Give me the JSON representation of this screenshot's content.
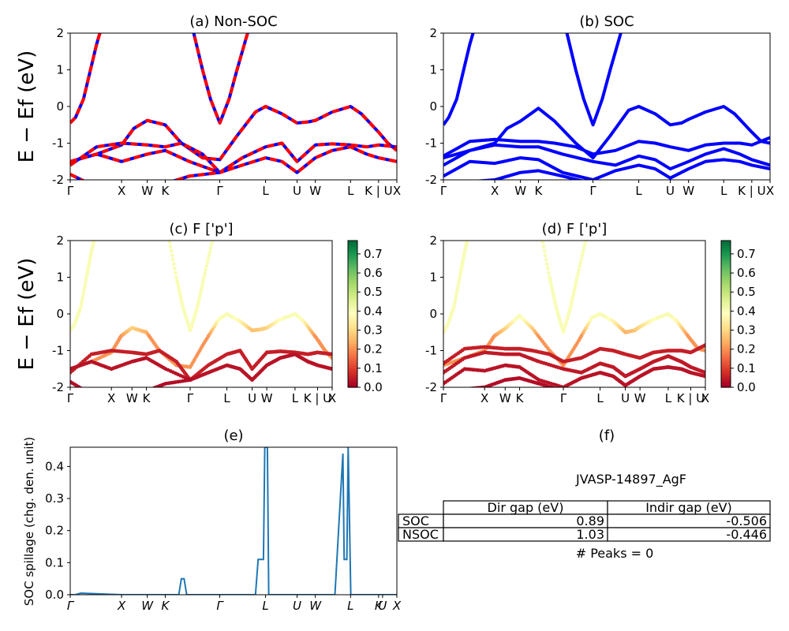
{
  "figure_id": "JVASP-14897_AgF",
  "colors": {
    "band": "#0000ff",
    "overlay": "#ff0000",
    "spillage": "#1f77b4"
  },
  "colormap": "RdYlGn",
  "chart_data": [
    {
      "id": "a",
      "type": "line",
      "title": "(a) Non-SOC",
      "ylabel": "E − Ef (eV)",
      "ylim": [
        -2,
        2
      ],
      "yticks": [
        -2,
        -1,
        0,
        1,
        2
      ],
      "kpath_labels": [
        "Γ",
        "X",
        "W",
        "K",
        "Γ",
        "L",
        "U",
        "W",
        "L",
        "K | U",
        "X"
      ],
      "kpath_pos": [
        0,
        0.194,
        0.291,
        0.359,
        0.565,
        0.738,
        0.857,
        0.926,
        1.059,
        1.165,
        1.234
      ],
      "style": "blue-red-dashed",
      "series": [
        {
          "x": [
            0,
            0.02,
            0.05,
            0.08,
            0.1,
            0.12
          ],
          "y": [
            -0.45,
            -0.3,
            0.2,
            1.1,
            1.7,
            2.2
          ]
        },
        {
          "x": [
            0.46,
            0.5,
            0.53,
            0.565,
            0.6,
            0.63,
            0.67,
            0.7
          ],
          "y": [
            2.2,
            1.0,
            0.2,
            -0.45,
            0.2,
            1.0,
            2.0,
            2.3
          ]
        },
        {
          "x": [
            0,
            0.1,
            0.194,
            0.24,
            0.291,
            0.33,
            0.359,
            0.42,
            0.5,
            0.565,
            0.63,
            0.7,
            0.738,
            0.8,
            0.857,
            0.9,
            0.926,
            0.99,
            1.059,
            1.1,
            1.165,
            1.2,
            1.234
          ],
          "y": [
            -1.5,
            -1.3,
            -1.05,
            -0.6,
            -0.38,
            -0.45,
            -0.5,
            -1.0,
            -1.4,
            -1.45,
            -0.8,
            -0.15,
            0.0,
            -0.2,
            -0.45,
            -0.42,
            -0.38,
            -0.15,
            0.0,
            -0.2,
            -0.7,
            -1.0,
            -1.2
          ]
        },
        {
          "x": [
            0,
            0.1,
            0.194,
            0.291,
            0.359,
            0.42,
            0.5,
            0.565,
            0.65,
            0.738,
            0.8,
            0.857,
            0.926,
            0.99,
            1.059,
            1.12,
            1.165,
            1.234
          ],
          "y": [
            -1.6,
            -1.1,
            -1.0,
            -1.05,
            -1.1,
            -1.0,
            -1.3,
            -1.8,
            -1.4,
            -1.1,
            -1.0,
            -1.5,
            -1.05,
            -1.02,
            -1.05,
            -1.1,
            -1.05,
            -1.1
          ]
        },
        {
          "x": [
            0,
            0.1,
            0.194,
            0.291,
            0.359,
            0.45,
            0.565,
            0.65,
            0.738,
            0.8,
            0.857,
            0.926,
            0.99,
            1.059,
            1.12,
            1.165,
            1.234
          ],
          "y": [
            -1.5,
            -1.3,
            -1.5,
            -1.3,
            -1.2,
            -1.5,
            -1.8,
            -1.6,
            -1.4,
            -1.5,
            -1.8,
            -1.4,
            -1.2,
            -1.1,
            -1.3,
            -1.4,
            -1.5
          ]
        },
        {
          "x": [
            0,
            0.1,
            0.194,
            0.291,
            0.359,
            0.45,
            0.565
          ],
          "y": [
            -1.85,
            -2.2,
            -2.3,
            -2.2,
            -2.1,
            -1.9,
            -1.8
          ]
        }
      ]
    },
    {
      "id": "b",
      "type": "line",
      "title": "(b) SOC",
      "ylim": [
        -2,
        2
      ],
      "yticks": [
        -2,
        -1,
        0,
        1,
        2
      ],
      "kpath_labels": [
        "Γ",
        "X",
        "W",
        "K",
        "Γ",
        "L",
        "U",
        "W",
        "L",
        "K | U",
        "X"
      ],
      "kpath_pos": [
        0,
        0.194,
        0.291,
        0.359,
        0.565,
        0.738,
        0.857,
        0.926,
        1.059,
        1.165,
        1.234
      ],
      "style": "blue",
      "series": [
        {
          "x": [
            0,
            0.02,
            0.05,
            0.08,
            0.1,
            0.12
          ],
          "y": [
            -0.5,
            -0.3,
            0.2,
            1.1,
            1.7,
            2.2
          ]
        },
        {
          "x": [
            0.46,
            0.5,
            0.53,
            0.565,
            0.6,
            0.63,
            0.67,
            0.7
          ],
          "y": [
            2.2,
            1.0,
            0.2,
            -0.5,
            0.2,
            1.0,
            2.0,
            2.3
          ]
        },
        {
          "x": [
            0,
            0.1,
            0.194,
            0.24,
            0.291,
            0.33,
            0.359,
            0.42,
            0.5,
            0.565,
            0.63,
            0.7,
            0.738,
            0.8,
            0.857,
            0.9,
            0.926,
            0.99,
            1.059,
            1.1,
            1.165,
            1.2,
            1.234
          ],
          "y": [
            -1.4,
            -1.2,
            -1.0,
            -0.6,
            -0.4,
            -0.2,
            -0.05,
            -0.4,
            -1.0,
            -1.4,
            -0.8,
            -0.1,
            0.0,
            -0.2,
            -0.5,
            -0.45,
            -0.35,
            -0.15,
            0.0,
            -0.2,
            -0.7,
            -0.95,
            -1.0
          ]
        },
        {
          "x": [
            0,
            0.1,
            0.194,
            0.291,
            0.359,
            0.42,
            0.5,
            0.565,
            0.65,
            0.738,
            0.8,
            0.857,
            0.926,
            0.99,
            1.059,
            1.12,
            1.165,
            1.234
          ],
          "y": [
            -1.35,
            -0.95,
            -0.9,
            -0.95,
            -0.95,
            -1.0,
            -1.1,
            -1.3,
            -1.2,
            -0.95,
            -1.0,
            -1.1,
            -1.2,
            -1.05,
            -1.0,
            -1.0,
            -1.05,
            -0.85
          ]
        },
        {
          "x": [
            0,
            0.1,
            0.194,
            0.291,
            0.359,
            0.45,
            0.565,
            0.65,
            0.738,
            0.8,
            0.857,
            0.926,
            0.99,
            1.059,
            1.12,
            1.165,
            1.234
          ],
          "y": [
            -1.6,
            -1.2,
            -1.05,
            -1.1,
            -1.1,
            -1.3,
            -1.5,
            -1.6,
            -1.35,
            -1.45,
            -1.7,
            -1.5,
            -1.3,
            -1.15,
            -1.3,
            -1.45,
            -1.6
          ]
        },
        {
          "x": [
            0,
            0.1,
            0.194,
            0.291,
            0.359,
            0.45,
            0.565,
            0.65,
            0.738,
            0.8,
            0.857,
            0.926,
            0.99,
            1.059,
            1.12,
            1.165,
            1.234
          ],
          "y": [
            -1.9,
            -1.5,
            -1.55,
            -1.4,
            -1.45,
            -1.8,
            -2.0,
            -1.75,
            -1.6,
            -1.7,
            -1.95,
            -1.7,
            -1.5,
            -1.45,
            -1.5,
            -1.6,
            -1.7
          ]
        },
        {
          "x": [
            0,
            0.1,
            0.194,
            0.291,
            0.359,
            0.45,
            0.565
          ],
          "y": [
            -2.1,
            -2.05,
            -2.0,
            -1.8,
            -1.75,
            -1.9,
            -2.1
          ]
        }
      ]
    },
    {
      "id": "c",
      "type": "scatter",
      "title": "(c)  F ['p']",
      "ylabel": "E − Ef (eV)",
      "ylim": [
        -2,
        2
      ],
      "yticks": [
        -2,
        -1,
        0,
        1,
        2
      ],
      "kpath_labels": [
        "Γ",
        "X",
        "W",
        "K",
        "Γ",
        "L",
        "U",
        "W",
        "L",
        "K | U",
        "X"
      ],
      "kpath_pos": [
        0,
        0.194,
        0.291,
        0.359,
        0.565,
        0.738,
        0.857,
        0.926,
        1.059,
        1.165,
        1.234
      ],
      "colorbar": {
        "min": 0.0,
        "max": 0.77,
        "ticks": [
          "0.0",
          "0.1",
          "0.2",
          "0.3",
          "0.4",
          "0.5",
          "0.6",
          "0.7"
        ]
      },
      "series_weights": [
        0.3,
        0.35,
        0.2,
        0.05,
        0.03,
        0.02
      ],
      "series_ref": "a"
    },
    {
      "id": "d",
      "type": "scatter",
      "title": "(d) F ['p']",
      "ylim": [
        -2,
        2
      ],
      "yticks": [
        -2,
        -1,
        0,
        1,
        2
      ],
      "kpath_labels": [
        "Γ",
        "X",
        "W",
        "K",
        "Γ",
        "L",
        "U",
        "W",
        "L",
        "K | U",
        "X"
      ],
      "kpath_pos": [
        0,
        0.194,
        0.291,
        0.359,
        0.565,
        0.738,
        0.857,
        0.926,
        1.059,
        1.165,
        1.234
      ],
      "colorbar": {
        "min": 0.0,
        "max": 0.77,
        "ticks": [
          "0.0",
          "0.1",
          "0.2",
          "0.3",
          "0.4",
          "0.5",
          "0.6",
          "0.7"
        ]
      },
      "series_weights": [
        0.3,
        0.35,
        0.2,
        0.05,
        0.04,
        0.03,
        0.02
      ],
      "series_ref": "b"
    },
    {
      "id": "e",
      "type": "line",
      "title": "(e)",
      "ylabel": "SOC spillage (chg. den. unit)",
      "ylim": [
        0,
        0.46
      ],
      "yticks": [
        "0.0",
        "0.1",
        "0.2",
        "0.3",
        "0.4"
      ],
      "kpath_labels": [
        "Γ",
        "X",
        "W",
        "K",
        "Γ",
        "L",
        "U",
        "W",
        "L",
        "K",
        "U",
        "X"
      ],
      "kpath_pos": [
        0,
        0.194,
        0.291,
        0.359,
        0.565,
        0.738,
        0.857,
        0.926,
        1.059,
        1.165,
        1.18,
        1.234
      ],
      "x": [
        0,
        0.02,
        0.04,
        0.194,
        0.4,
        0.41,
        0.42,
        0.43,
        0.44,
        0.565,
        0.7,
        0.71,
        0.715,
        0.73,
        0.735,
        0.745,
        0.75,
        0.76,
        1.0,
        1.03,
        1.035,
        1.045,
        1.05,
        1.06,
        1.07,
        1.234
      ],
      "y": [
        0,
        0,
        0.005,
        0,
        0,
        0,
        0.05,
        0.05,
        0,
        0,
        0,
        0.11,
        0.11,
        0.11,
        0.46,
        0.46,
        0,
        0,
        0,
        0.44,
        0.11,
        0.11,
        0.46,
        0,
        0,
        0
      ]
    }
  ],
  "table_panel": {
    "title": "(f)",
    "subtitle": "JVASP-14897_AgF",
    "col_labels": [
      "Dir gap (eV)",
      "Indir gap (eV)"
    ],
    "rows": [
      {
        "label": "SOC",
        "dir": "0.89",
        "indir": "-0.506"
      },
      {
        "label": "NSOC",
        "dir": "1.03",
        "indir": "-0.446"
      }
    ],
    "footer": "# Peaks = 0"
  }
}
